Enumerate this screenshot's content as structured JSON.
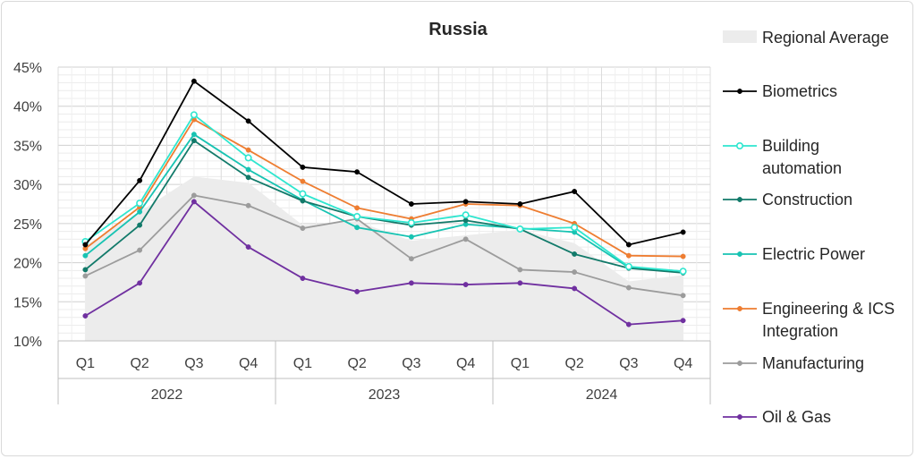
{
  "chart_data": {
    "type": "line",
    "title": "Russia",
    "xlabel": "",
    "ylabel": "",
    "ylim": [
      10,
      45
    ],
    "y_ticks": [
      "10%",
      "15%",
      "20%",
      "25%",
      "30%",
      "35%",
      "40%",
      "45%"
    ],
    "grid": true,
    "legend_position": "right",
    "categories": [
      "Q1",
      "Q2",
      "Q3",
      "Q4",
      "Q1",
      "Q2",
      "Q3",
      "Q4",
      "Q1",
      "Q2",
      "Q3",
      "Q4"
    ],
    "year_groups": [
      {
        "label": "2022",
        "span": 4
      },
      {
        "label": "2023",
        "span": 4
      },
      {
        "label": "2024",
        "span": 4
      }
    ],
    "area": {
      "name": "Regional Average",
      "color": "#ececec",
      "values": [
        22.2,
        26.5,
        31.0,
        30.2,
        24.8,
        25.3,
        22.8,
        23.5,
        24.2,
        22.5,
        17.6,
        18.4
      ]
    },
    "series": [
      {
        "name": "Biometrics",
        "color": "#000000",
        "hollow": false,
        "values": [
          22.3,
          30.5,
          43.2,
          38.1,
          32.2,
          31.6,
          27.5,
          27.8,
          27.5,
          29.1,
          22.3,
          23.9
        ]
      },
      {
        "name": "Building automation",
        "color": "#2ee6cf",
        "hollow": true,
        "values": [
          22.7,
          27.6,
          38.9,
          33.4,
          28.8,
          25.9,
          25.1,
          26.1,
          24.3,
          24.5,
          19.5,
          18.9
        ]
      },
      {
        "name": "Construction",
        "color": "#127a6a",
        "hollow": false,
        "values": [
          19.1,
          24.8,
          35.6,
          30.9,
          27.9,
          25.9,
          24.8,
          25.4,
          24.3,
          21.1,
          19.3,
          18.7
        ]
      },
      {
        "name": "Electric Power",
        "color": "#17c3b2",
        "hollow": false,
        "values": [
          20.9,
          26.5,
          36.4,
          31.9,
          28.0,
          24.5,
          23.3,
          24.9,
          24.4,
          23.9,
          19.4,
          18.9
        ]
      },
      {
        "name": "Engineering & ICS Integration",
        "color": "#ee7d31",
        "hollow": false,
        "values": [
          21.8,
          27.1,
          38.3,
          34.4,
          30.4,
          27.0,
          25.6,
          27.5,
          27.3,
          25.0,
          20.9,
          20.8
        ]
      },
      {
        "name": "Manufacturing",
        "color": "#9c9c9c",
        "hollow": false,
        "values": [
          18.3,
          21.6,
          28.6,
          27.3,
          24.4,
          25.6,
          20.5,
          23.0,
          19.1,
          18.8,
          16.8,
          15.8
        ]
      },
      {
        "name": "Oil & Gas",
        "color": "#7030a0",
        "hollow": false,
        "values": [
          13.2,
          17.4,
          27.8,
          22.0,
          18.0,
          16.3,
          17.4,
          17.2,
          17.4,
          16.7,
          12.1,
          12.6
        ]
      }
    ],
    "legend_lines": {
      "Regional Average": [
        "Regional Average"
      ],
      "Biometrics": [
        "Biometrics"
      ],
      "Building automation": [
        "Building",
        "automation"
      ],
      "Construction": [
        "Construction"
      ],
      "Electric Power": [
        "Electric Power"
      ],
      "Engineering & ICS Integration": [
        "Engineering & ICS",
        "Integration"
      ],
      "Manufacturing": [
        "Manufacturing"
      ],
      "Oil & Gas": [
        "Oil & Gas"
      ]
    }
  }
}
